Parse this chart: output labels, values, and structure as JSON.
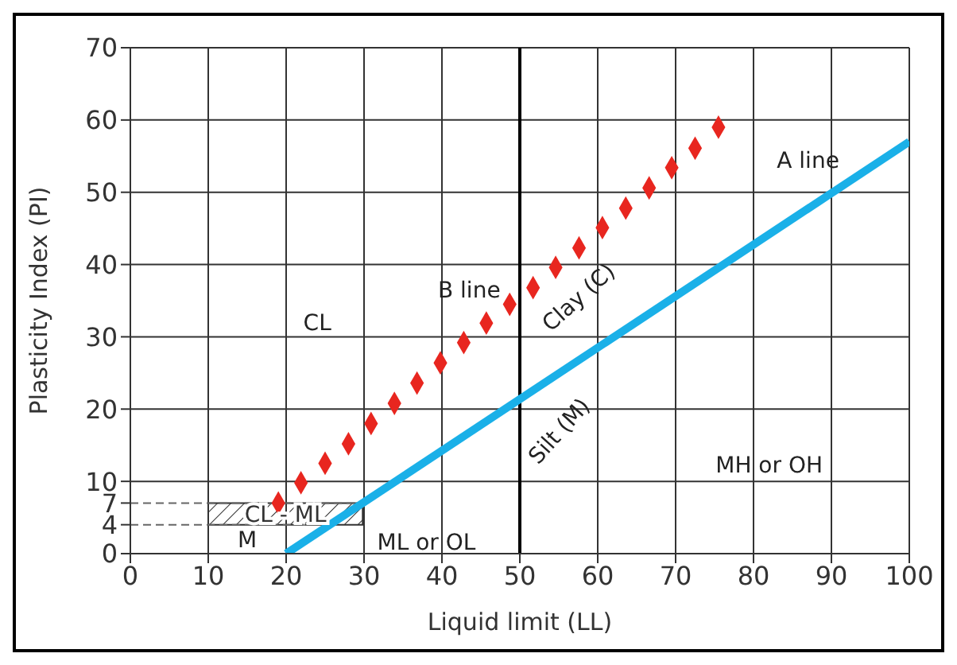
{
  "chart_data": {
    "type": "line",
    "xlabel": "Liquid limit (LL)",
    "ylabel": "Plasticity Index (PI)",
    "xlim": [
      0,
      100
    ],
    "xticks": [
      0,
      10,
      20,
      30,
      40,
      50,
      60,
      70,
      80,
      90,
      100
    ],
    "ylim": [
      0,
      70
    ],
    "yticks": [
      0,
      4,
      7,
      10,
      20,
      30,
      40,
      50,
      60,
      70
    ],
    "grid": true,
    "series": [
      {
        "color": "#1ab0e8",
        "marker": "none",
        "line_style": "solid",
        "x": [
          20,
          100
        ],
        "values": [
          0,
          57
        ]
      },
      {
        "type": "scatter",
        "color": "#e8261f",
        "marker": "diamond",
        "x": [
          19,
          21.9,
          25,
          28,
          30.9,
          33.9,
          36.8,
          39.8,
          42.8,
          45.7,
          48.7,
          51.7,
          54.6,
          57.6,
          60.6,
          63.6,
          66.6,
          69.5,
          72.5,
          75.5
        ],
        "values": [
          7,
          9.8,
          12.5,
          15.2,
          18,
          20.8,
          23.6,
          26.4,
          29.2,
          31.9,
          34.5,
          36.8,
          39.6,
          42.3,
          45.1,
          47.8,
          50.6,
          53.4,
          56.1,
          59
        ]
      }
    ],
    "ref_lines": [
      {
        "axis": "x",
        "value": 50,
        "color": "#000000",
        "line_style": "solid"
      },
      {
        "axis": "y",
        "value": 7,
        "color": "#666666",
        "line_style": "dashed"
      },
      {
        "axis": "y",
        "value": 4,
        "color": "#666666",
        "line_style": "dashed"
      }
    ],
    "bands": [
      {
        "axis": "y",
        "from": 4,
        "to": 7,
        "label": "CL - ML"
      }
    ],
    "annotations": [
      "A line",
      "B line",
      "CL",
      "Clay (C)",
      "Silt (M)",
      "MH or OH",
      "ML or OL",
      "M"
    ]
  }
}
